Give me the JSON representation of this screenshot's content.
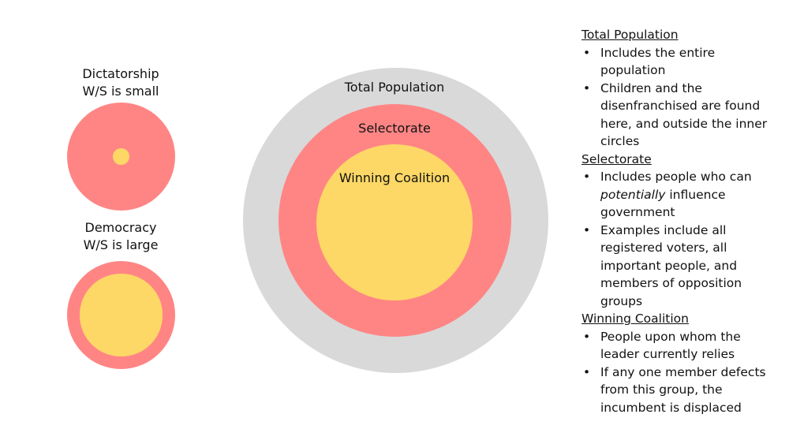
{
  "colors": {
    "population": "#d9d9d9",
    "selectorate": "#ff8585",
    "coalition": "#fdd866"
  },
  "dictatorship": {
    "title": "Dictatorship",
    "subtitle": "W/S is small",
    "coalition_share": 0.15
  },
  "democracy": {
    "title": "Democracy",
    "subtitle": "W/S is large",
    "coalition_share": 0.76
  },
  "diagram": {
    "population_label": "Total Population",
    "selectorate_label": "Selectorate",
    "coalition_label": "Winning Coalition"
  },
  "notes": {
    "sections": [
      {
        "heading": "Total Population",
        "bullets": [
          "Includes the entire population",
          "Children and the disenfranchised are found here, and outside the inner circles"
        ]
      },
      {
        "heading": "Selectorate",
        "bullets": [
          "Includes people who can potentially influence government",
          "Examples include all registered voters, all important people, and members of opposition groups"
        ]
      },
      {
        "heading": "Winning Coalition",
        "bullets": [
          "People upon whom the leader currently relies",
          "If any one member defects from this group, the incumbent is displaced"
        ]
      }
    ]
  }
}
